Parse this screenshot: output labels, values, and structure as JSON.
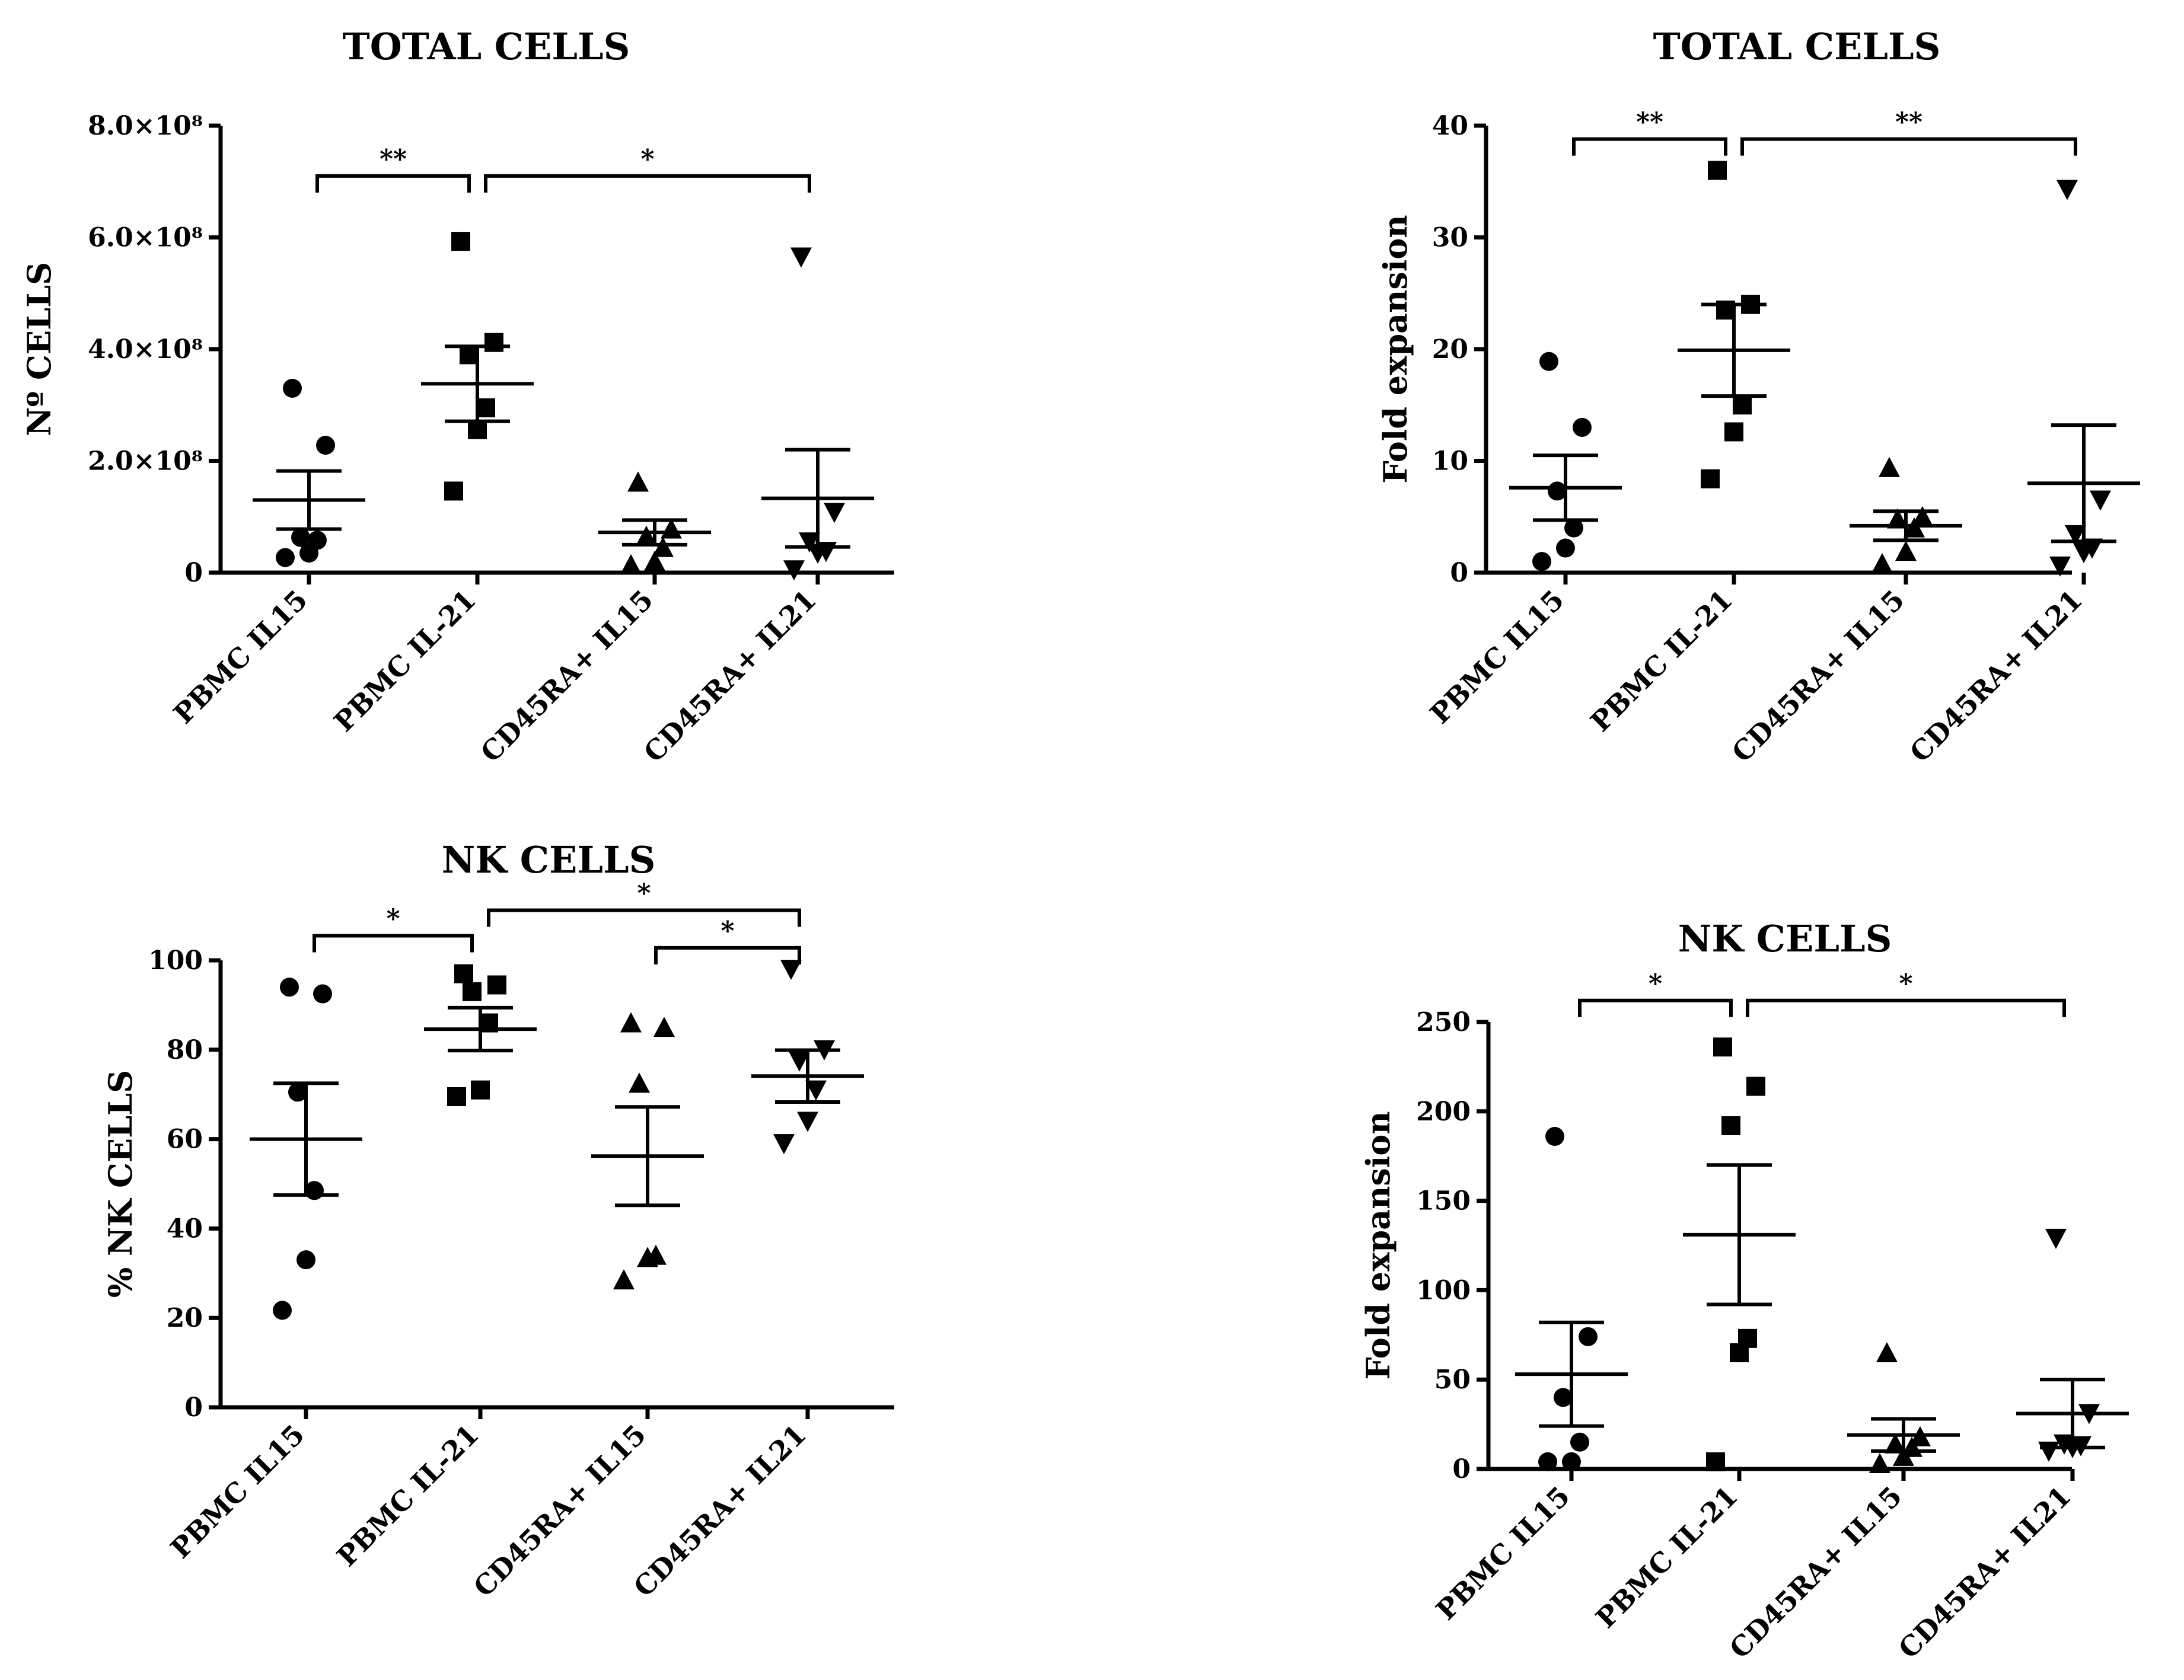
{
  "chart_data": [
    {
      "type": "scatter",
      "title": "TOTAL CELLS",
      "ylabel": "Nº CELLS",
      "categories": [
        "PBMC IL15",
        "PBMC IL-21",
        "CD45RA+ IL15",
        "CD45RA+ IL21"
      ],
      "ylim": [
        0,
        800000000
      ],
      "yticks": [
        {
          "value": 0,
          "label": "0"
        },
        {
          "value": 200000000,
          "label": "2.0×10⁸"
        },
        {
          "value": 400000000,
          "label": "4.0×10⁸"
        },
        {
          "value": 600000000,
          "label": "6.0×10⁸"
        },
        {
          "value": 800000000,
          "label": "8.0×10⁸"
        }
      ],
      "markers": [
        "circle",
        "square",
        "triangle-up",
        "triangle-down"
      ],
      "points": [
        [
          330000000,
          228000000,
          63000000,
          58000000,
          35000000,
          27000000
        ],
        [
          593000000,
          412000000,
          390000000,
          295000000,
          256000000,
          146000000
        ],
        [
          162000000,
          78000000,
          65000000,
          45000000,
          20000000,
          14000000
        ],
        [
          565000000,
          108000000,
          55000000,
          38000000,
          35000000,
          5000000
        ]
      ],
      "mean": [
        130000000,
        338000000,
        72000000,
        133000000
      ],
      "sem": [
        52000000,
        67000000,
        22000000,
        87000000
      ],
      "significance": [
        {
          "from": 0,
          "to": 1,
          "label": "**",
          "y": 710000000
        },
        {
          "from": 1,
          "to": 3,
          "label": "*",
          "y": 710000000
        }
      ]
    },
    {
      "type": "scatter",
      "title": "TOTAL CELLS",
      "ylabel": "Fold expansion",
      "categories": [
        "PBMC IL15",
        "PBMC IL-21",
        "CD45RA+ IL15",
        "CD45RA+ IL21"
      ],
      "ylim": [
        0,
        40
      ],
      "yticks": [
        {
          "value": 0,
          "label": "0"
        },
        {
          "value": 10,
          "label": "10"
        },
        {
          "value": 20,
          "label": "20"
        },
        {
          "value": 30,
          "label": "30"
        },
        {
          "value": 40,
          "label": "40"
        }
      ],
      "markers": [
        "circle",
        "square",
        "triangle-up",
        "triangle-down"
      ],
      "points": [
        [
          18.9,
          13.0,
          7.3,
          4.0,
          2.2,
          1.0
        ],
        [
          36.0,
          24.0,
          23.5,
          15.0,
          12.6,
          8.4
        ],
        [
          9.4,
          5.0,
          4.8,
          4.0,
          1.9,
          0.8
        ],
        [
          34.3,
          6.5,
          3.4,
          2.2,
          1.8,
          0.6
        ]
      ],
      "mean": [
        7.6,
        19.9,
        4.2,
        8.0
      ],
      "sem": [
        2.9,
        4.1,
        1.3,
        5.2
      ],
      "significance": [
        {
          "from": 0,
          "to": 1,
          "label": "**",
          "y": 38.8
        },
        {
          "from": 1,
          "to": 3,
          "label": "**",
          "y": 38.8
        }
      ]
    },
    {
      "type": "scatter",
      "title": "NK CELLS",
      "ylabel": "% NK CELLS",
      "categories": [
        "PBMC IL15",
        "PBMC IL-21",
        "CD45RA+ IL15",
        "CD45RA+ IL21"
      ],
      "ylim": [
        0,
        100
      ],
      "yticks": [
        {
          "value": 0,
          "label": "0"
        },
        {
          "value": 20,
          "label": "20"
        },
        {
          "value": 40,
          "label": "40"
        },
        {
          "value": 60,
          "label": "60"
        },
        {
          "value": 80,
          "label": "80"
        },
        {
          "value": 100,
          "label": "100"
        }
      ],
      "markers": [
        "circle",
        "square",
        "triangle-up",
        "triangle-down"
      ],
      "points": [
        [
          94.0,
          92.5,
          70.5,
          48.5,
          33.0,
          21.7
        ],
        [
          97.0,
          94.5,
          93.0,
          86.0,
          71.0,
          69.5
        ],
        [
          86.0,
          85.0,
          72.5,
          34.0,
          33.5,
          28.5
        ],
        [
          98.0,
          80.0,
          77.5,
          71.0,
          64.0,
          59.0
        ]
      ],
      "mean": [
        60.0,
        84.6,
        56.2,
        74.1
      ],
      "sem": [
        12.5,
        4.8,
        11.0,
        5.8
      ],
      "significance": [
        {
          "from": 0,
          "to": 1,
          "label": "*",
          "y": 105.5
        },
        {
          "from": 1,
          "to": 3,
          "label": "*",
          "y": 111.2
        },
        {
          "from": 2,
          "to": 3,
          "label": "*",
          "y": 102.8
        }
      ]
    },
    {
      "type": "scatter",
      "title": "NK CELLS",
      "ylabel": "Fold expansion",
      "categories": [
        "PBMC IL15",
        "PBMC IL-21",
        "CD45RA+ IL15",
        "CD45RA+ IL21"
      ],
      "ylim": [
        0,
        250
      ],
      "yticks": [
        {
          "value": 0,
          "label": "0"
        },
        {
          "value": 50,
          "label": "50"
        },
        {
          "value": 100,
          "label": "100"
        },
        {
          "value": 150,
          "label": "150"
        },
        {
          "value": 200,
          "label": "200"
        },
        {
          "value": 250,
          "label": "250"
        }
      ],
      "markers": [
        "circle",
        "square",
        "triangle-up",
        "triangle-down"
      ],
      "points": [
        [
          186,
          74,
          40,
          15,
          4,
          4
        ],
        [
          236,
          214,
          192,
          73,
          65,
          4
        ],
        [
          65,
          18,
          14,
          12,
          7,
          3
        ],
        [
          129,
          31,
          14,
          13,
          12,
          10
        ]
      ],
      "mean": [
        53,
        131,
        19,
        31
      ],
      "sem": [
        29,
        39,
        9,
        19
      ],
      "significance": [
        {
          "from": 0,
          "to": 1,
          "label": "*",
          "y": 262
        },
        {
          "from": 1,
          "to": 3,
          "label": "*",
          "y": 262
        }
      ]
    }
  ]
}
